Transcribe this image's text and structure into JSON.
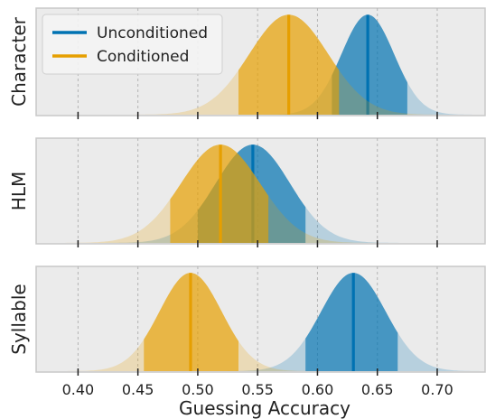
{
  "chart_data": {
    "type": "area",
    "xlabel": "Guessing Accuracy",
    "xticks": [
      0.4,
      0.45,
      0.5,
      0.55,
      0.6,
      0.65,
      0.7
    ],
    "xtick_labels": [
      "0.40",
      "0.45",
      "0.50",
      "0.55",
      "0.60",
      "0.65",
      "0.70"
    ],
    "xlim": [
      0.365,
      0.74
    ],
    "grid": "vertical dashed",
    "legend": {
      "location": "top-left of first panel",
      "entries": [
        "Unconditioned",
        "Conditioned"
      ]
    },
    "colors": {
      "Unconditioned": "#0072B2",
      "Conditioned": "#E69F00"
    },
    "panels": [
      {
        "ylabel": "Character",
        "series": [
          {
            "name": "Unconditioned",
            "mean": 0.642,
            "sd": 0.022,
            "median_line": 0.642,
            "highlight_interval": [
              0.612,
              0.675
            ]
          },
          {
            "name": "Conditioned",
            "mean": 0.576,
            "sd": 0.033,
            "median_line": 0.576,
            "highlight_interval": [
              0.534,
              0.618
            ]
          }
        ]
      },
      {
        "ylabel": "HLM",
        "series": [
          {
            "name": "Unconditioned",
            "mean": 0.546,
            "sd": 0.031,
            "median_line": 0.546,
            "highlight_interval": [
              0.5,
              0.59
            ]
          },
          {
            "name": "Conditioned",
            "mean": 0.519,
            "sd": 0.033,
            "median_line": 0.519,
            "highlight_interval": [
              0.477,
              0.559
            ]
          }
        ]
      },
      {
        "ylabel": "Syllable",
        "series": [
          {
            "name": "Unconditioned",
            "mean": 0.63,
            "sd": 0.027,
            "median_line": 0.63,
            "highlight_interval": [
              0.59,
              0.667
            ]
          },
          {
            "name": "Conditioned",
            "mean": 0.494,
            "sd": 0.026,
            "median_line": 0.494,
            "highlight_interval": [
              0.455,
              0.534
            ]
          }
        ]
      }
    ]
  }
}
